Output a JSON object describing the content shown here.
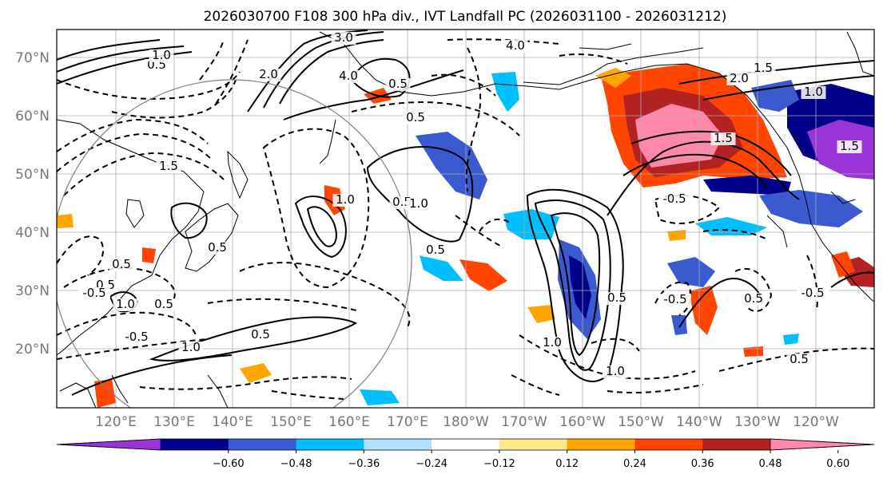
{
  "title": "2026030700 F108 300 hPa div., IVT Landfall PC (2026031100 - 2026031212)",
  "lat_labels": [
    "70°N",
    "60°N",
    "50°N",
    "40°N",
    "30°N",
    "20°N"
  ],
  "lon_labels": [
    "120°E",
    "130°E",
    "140°E",
    "150°E",
    "160°E",
    "170°E",
    "180°W",
    "170°W",
    "160°W",
    "150°W",
    "140°W",
    "130°W",
    "120°W"
  ],
  "colorbar": {
    "ticks": [
      "−0.60",
      "−0.48",
      "−0.36",
      "−0.24",
      "−0.12",
      "0.12",
      "0.24",
      "0.36",
      "0.48",
      "0.60"
    ],
    "colors": [
      "#9a34d8",
      "#000089",
      "#3a5ad0",
      "#00bfff",
      "#b0e2ff",
      "#ffffff",
      "#fde98a",
      "#ffa500",
      "#ff4500",
      "#b22222",
      "#ff88aa"
    ],
    "extend": "both"
  },
  "contour_labels": [
    "3.0",
    "2.0",
    "4.0",
    "0.5",
    "1.0",
    "0.5",
    "0.5",
    "1.5",
    "2.0",
    "1.5",
    "1.0",
    "1.5",
    "1.0",
    "0.5",
    "0.5",
    "1.0",
    "0.5",
    "0.5",
    "0.5",
    "1.0",
    "0.5",
    "0.5",
    "1.0",
    "0.5",
    "-0.5",
    "-0.5",
    "0.5",
    "-0.5",
    "4.0",
    "1.0",
    "1.5",
    "1.0",
    "0.5",
    "-0.5",
    "-0.5"
  ]
}
